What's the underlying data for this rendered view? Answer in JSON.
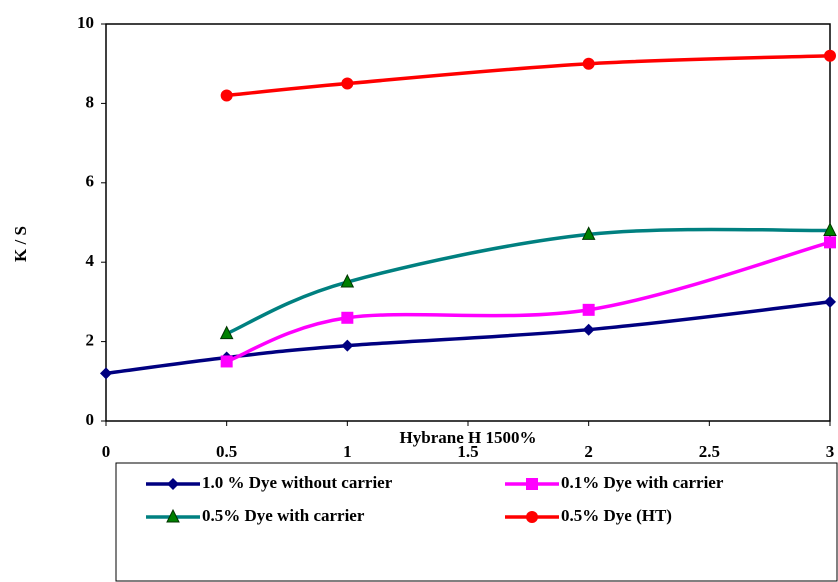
{
  "chart_data": {
    "type": "line",
    "x_label": "Hybrane H 1500%",
    "y_label": "K / S",
    "xlim": [
      0,
      3
    ],
    "xticks": [
      0,
      0.5,
      1,
      1.5,
      2,
      2.5,
      3
    ],
    "ylim": [
      0,
      10
    ],
    "yticks": [
      0,
      2,
      4,
      6,
      8,
      10
    ],
    "smooth": true,
    "grid": false,
    "series": [
      {
        "name": "1.0 % Dye without carrier",
        "color": "#000080",
        "marker": "diamond",
        "x": [
          0,
          0.5,
          1,
          2,
          3
        ],
        "values": [
          1.2,
          1.6,
          1.9,
          2.3,
          3.0
        ]
      },
      {
        "name": "0.1% Dye with carrier",
        "color": "#ff00ff",
        "marker": "square",
        "x": [
          0.5,
          1,
          2,
          3
        ],
        "values": [
          1.5,
          2.6,
          2.8,
          4.5
        ]
      },
      {
        "name": "0.5% Dye with carrier",
        "color": "#008080",
        "marker": "triangle",
        "x": [
          0.5,
          1,
          2,
          3
        ],
        "values": [
          2.2,
          3.5,
          4.7,
          4.8
        ]
      },
      {
        "name": "0.5% Dye (HT)",
        "color": "#ff0000",
        "marker": "circle",
        "x": [
          0.5,
          1,
          2,
          3
        ],
        "values": [
          8.2,
          8.5,
          9.0,
          9.2
        ]
      }
    ]
  }
}
